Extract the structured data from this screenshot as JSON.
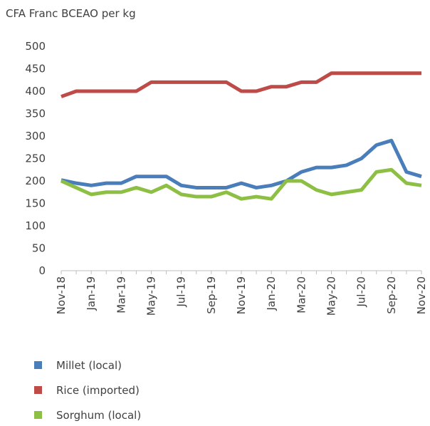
{
  "chart_data": {
    "type": "line",
    "title": "CFA Franc BCEAO per kg",
    "categories": [
      "Nov-18",
      null,
      "Jan-19",
      null,
      "Mar-19",
      null,
      "May-19",
      null,
      "Jul-19",
      null,
      "Sep-19",
      null,
      "Nov-19",
      null,
      "Jan-20",
      null,
      "Mar-20",
      null,
      "May-20",
      null,
      "Jul-20",
      null,
      "Sep-20",
      null,
      "Nov-20"
    ],
    "series": [
      {
        "name": "Millet (local)",
        "color": "#4a7ebb",
        "values": [
          202,
          195,
          190,
          195,
          195,
          210,
          210,
          210,
          190,
          185,
          185,
          185,
          195,
          185,
          190,
          200,
          220,
          230,
          230,
          235,
          250,
          280,
          290,
          220,
          210
        ]
      },
      {
        "name": "Rice (imported)",
        "color": "#be4b48",
        "values": [
          388,
          400,
          400,
          400,
          400,
          400,
          420,
          420,
          420,
          420,
          420,
          420,
          400,
          400,
          410,
          410,
          420,
          420,
          440,
          440,
          440,
          440,
          440,
          440,
          440
        ]
      },
      {
        "name": "Sorghum (local)",
        "color": "#8cbf44",
        "values": [
          200,
          185,
          170,
          175,
          175,
          185,
          175,
          190,
          170,
          165,
          165,
          175,
          160,
          165,
          160,
          200,
          200,
          180,
          170,
          175,
          180,
          220,
          225,
          195,
          190
        ]
      }
    ],
    "ylim": [
      0,
      500
    ],
    "yticks": [
      0,
      50,
      100,
      150,
      200,
      250,
      300,
      350,
      400,
      450,
      500
    ]
  }
}
